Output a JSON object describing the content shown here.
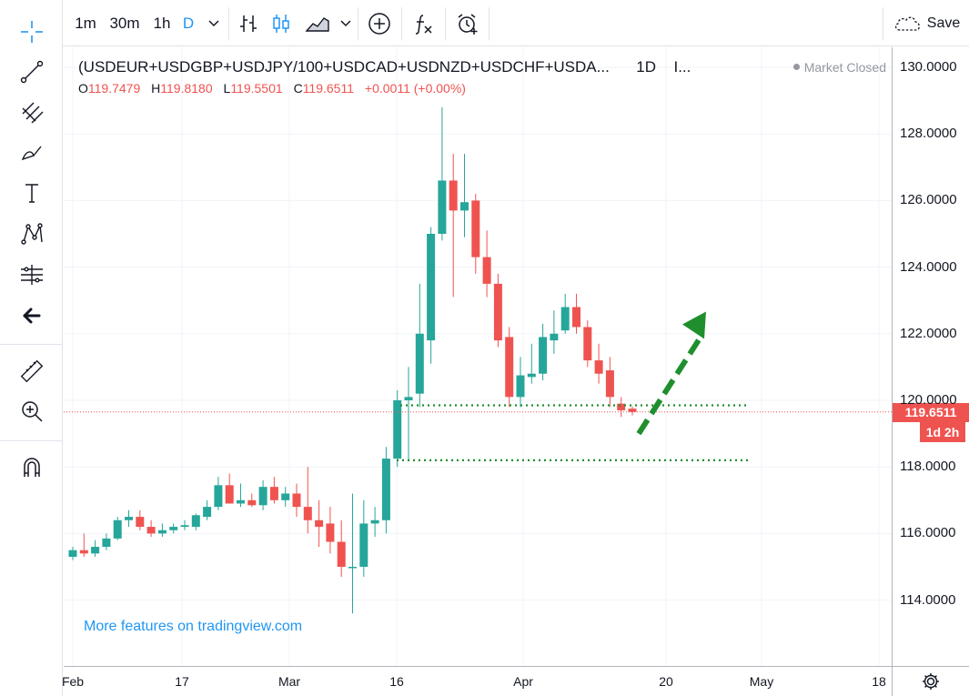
{
  "toolbar": {
    "intervals": [
      "1m",
      "30m",
      "1h",
      "D"
    ],
    "active_interval": "D",
    "save_label": "Save"
  },
  "left_tools": [
    {
      "name": "crosshair-icon"
    },
    {
      "name": "trend-line-icon"
    },
    {
      "name": "pitchfork-icon"
    },
    {
      "name": "brush-icon"
    },
    {
      "name": "text-icon"
    },
    {
      "name": "pattern-icon"
    },
    {
      "name": "forecast-icon"
    },
    {
      "name": "back-arrow-icon"
    },
    {
      "name": "ruler-icon"
    },
    {
      "name": "zoom-in-icon"
    },
    {
      "name": "magnet-icon"
    }
  ],
  "legend": {
    "symbol": "(USDEUR+USDGBP+USDJPY/100+USDCAD+USDNZD+USDCHF+USDA...",
    "interval": "1D",
    "extra": "I...",
    "o_label": "O",
    "o": "119.7479",
    "h_label": "H",
    "h": "119.8180",
    "l_label": "L",
    "l": "119.5501",
    "c_label": "C",
    "c": "119.6511",
    "change": "+0.0011 (+0.00%)"
  },
  "market_status": "Market Closed",
  "watermark": "More features on tradingview.com",
  "price_axis": {
    "ticks": [
      "130.0000",
      "128.0000",
      "126.0000",
      "124.0000",
      "122.0000",
      "120.0000",
      "118.0000",
      "116.0000",
      "114.0000"
    ],
    "current_price": "119.6511",
    "countdown": "1d 2h"
  },
  "time_axis": {
    "ticks": [
      "Feb",
      "17",
      "Mar",
      "16",
      "Apr",
      "20",
      "May",
      "18"
    ]
  },
  "colors": {
    "up": "#26a69a",
    "down": "#ef5350",
    "accent": "#2196f3",
    "annotation": "#1f8f2e",
    "grid": "#f0f3fa"
  },
  "chart_data": {
    "type": "candlestick",
    "interval": "1D",
    "ylim": [
      112.5,
      131
    ],
    "candles": [
      {
        "o": 115.3,
        "h": 115.6,
        "l": 115.2,
        "c": 115.5
      },
      {
        "o": 115.5,
        "h": 116.0,
        "l": 115.3,
        "c": 115.4
      },
      {
        "o": 115.4,
        "h": 115.8,
        "l": 115.3,
        "c": 115.6
      },
      {
        "o": 115.6,
        "h": 116.0,
        "l": 115.5,
        "c": 115.85
      },
      {
        "o": 115.85,
        "h": 116.5,
        "l": 115.8,
        "c": 116.4
      },
      {
        "o": 116.4,
        "h": 116.7,
        "l": 116.2,
        "c": 116.5
      },
      {
        "o": 116.5,
        "h": 116.7,
        "l": 116.1,
        "c": 116.2
      },
      {
        "o": 116.2,
        "h": 116.4,
        "l": 115.9,
        "c": 116.0
      },
      {
        "o": 116.0,
        "h": 116.3,
        "l": 115.9,
        "c": 116.1
      },
      {
        "o": 116.1,
        "h": 116.3,
        "l": 116.0,
        "c": 116.2
      },
      {
        "o": 116.2,
        "h": 116.4,
        "l": 116.1,
        "c": 116.25
      },
      {
        "o": 116.2,
        "h": 116.6,
        "l": 116.1,
        "c": 116.55
      },
      {
        "o": 116.5,
        "h": 117.0,
        "l": 116.4,
        "c": 116.8
      },
      {
        "o": 116.8,
        "h": 117.7,
        "l": 116.7,
        "c": 117.45
      },
      {
        "o": 117.45,
        "h": 117.8,
        "l": 116.9,
        "c": 116.9
      },
      {
        "o": 116.9,
        "h": 117.5,
        "l": 116.8,
        "c": 117.0
      },
      {
        "o": 117.0,
        "h": 117.2,
        "l": 116.8,
        "c": 116.85
      },
      {
        "o": 116.85,
        "h": 117.6,
        "l": 116.7,
        "c": 117.4
      },
      {
        "o": 117.4,
        "h": 117.7,
        "l": 116.9,
        "c": 117.0
      },
      {
        "o": 117.0,
        "h": 117.4,
        "l": 116.8,
        "c": 117.2
      },
      {
        "o": 117.2,
        "h": 117.5,
        "l": 116.5,
        "c": 116.8
      },
      {
        "o": 116.8,
        "h": 118.0,
        "l": 116.0,
        "c": 116.4
      },
      {
        "o": 116.4,
        "h": 117.0,
        "l": 115.6,
        "c": 116.2
      },
      {
        "o": 116.3,
        "h": 116.8,
        "l": 115.4,
        "c": 115.75
      },
      {
        "o": 115.75,
        "h": 116.4,
        "l": 114.7,
        "c": 115.0
      },
      {
        "o": 115.0,
        "h": 117.2,
        "l": 113.6,
        "c": 115.0
      },
      {
        "o": 115.0,
        "h": 117.0,
        "l": 114.7,
        "c": 116.3
      },
      {
        "o": 116.3,
        "h": 116.8,
        "l": 115.9,
        "c": 116.4
      },
      {
        "o": 116.4,
        "h": 118.6,
        "l": 116.0,
        "c": 118.25
      },
      {
        "o": 118.25,
        "h": 120.3,
        "l": 118.0,
        "c": 120.0
      },
      {
        "o": 120.0,
        "h": 121.0,
        "l": 118.2,
        "c": 120.1
      },
      {
        "o": 120.2,
        "h": 123.5,
        "l": 119.8,
        "c": 122.0
      },
      {
        "o": 121.8,
        "h": 125.2,
        "l": 121.1,
        "c": 125.0
      },
      {
        "o": 125.0,
        "h": 128.8,
        "l": 124.8,
        "c": 126.6
      },
      {
        "o": 126.6,
        "h": 127.4,
        "l": 123.1,
        "c": 125.7
      },
      {
        "o": 125.7,
        "h": 127.4,
        "l": 124.9,
        "c": 125.95
      },
      {
        "o": 126.0,
        "h": 126.2,
        "l": 123.8,
        "c": 124.3
      },
      {
        "o": 124.3,
        "h": 125.1,
        "l": 123.1,
        "c": 123.5
      },
      {
        "o": 123.5,
        "h": 123.8,
        "l": 121.6,
        "c": 121.8
      },
      {
        "o": 121.9,
        "h": 122.2,
        "l": 119.8,
        "c": 120.1
      },
      {
        "o": 120.1,
        "h": 121.3,
        "l": 119.8,
        "c": 120.75
      },
      {
        "o": 120.7,
        "h": 121.7,
        "l": 120.5,
        "c": 120.8
      },
      {
        "o": 120.8,
        "h": 122.3,
        "l": 120.6,
        "c": 121.9
      },
      {
        "o": 121.8,
        "h": 122.7,
        "l": 121.4,
        "c": 122.0
      },
      {
        "o": 122.1,
        "h": 123.2,
        "l": 122.0,
        "c": 122.8
      },
      {
        "o": 122.8,
        "h": 123.2,
        "l": 122.0,
        "c": 122.2
      },
      {
        "o": 122.2,
        "h": 122.4,
        "l": 121.0,
        "c": 121.2
      },
      {
        "o": 121.2,
        "h": 121.7,
        "l": 120.5,
        "c": 120.8
      },
      {
        "o": 120.9,
        "h": 121.3,
        "l": 119.8,
        "c": 120.1
      },
      {
        "o": 119.9,
        "h": 120.1,
        "l": 119.5,
        "c": 119.7
      },
      {
        "o": 119.75,
        "h": 119.82,
        "l": 119.55,
        "c": 119.65
      }
    ],
    "levels": [
      119.85,
      118.2
    ],
    "arrow_from": [
      119.0,
      119.0
    ],
    "arrow_to": [
      122.5,
      122.5
    ]
  }
}
